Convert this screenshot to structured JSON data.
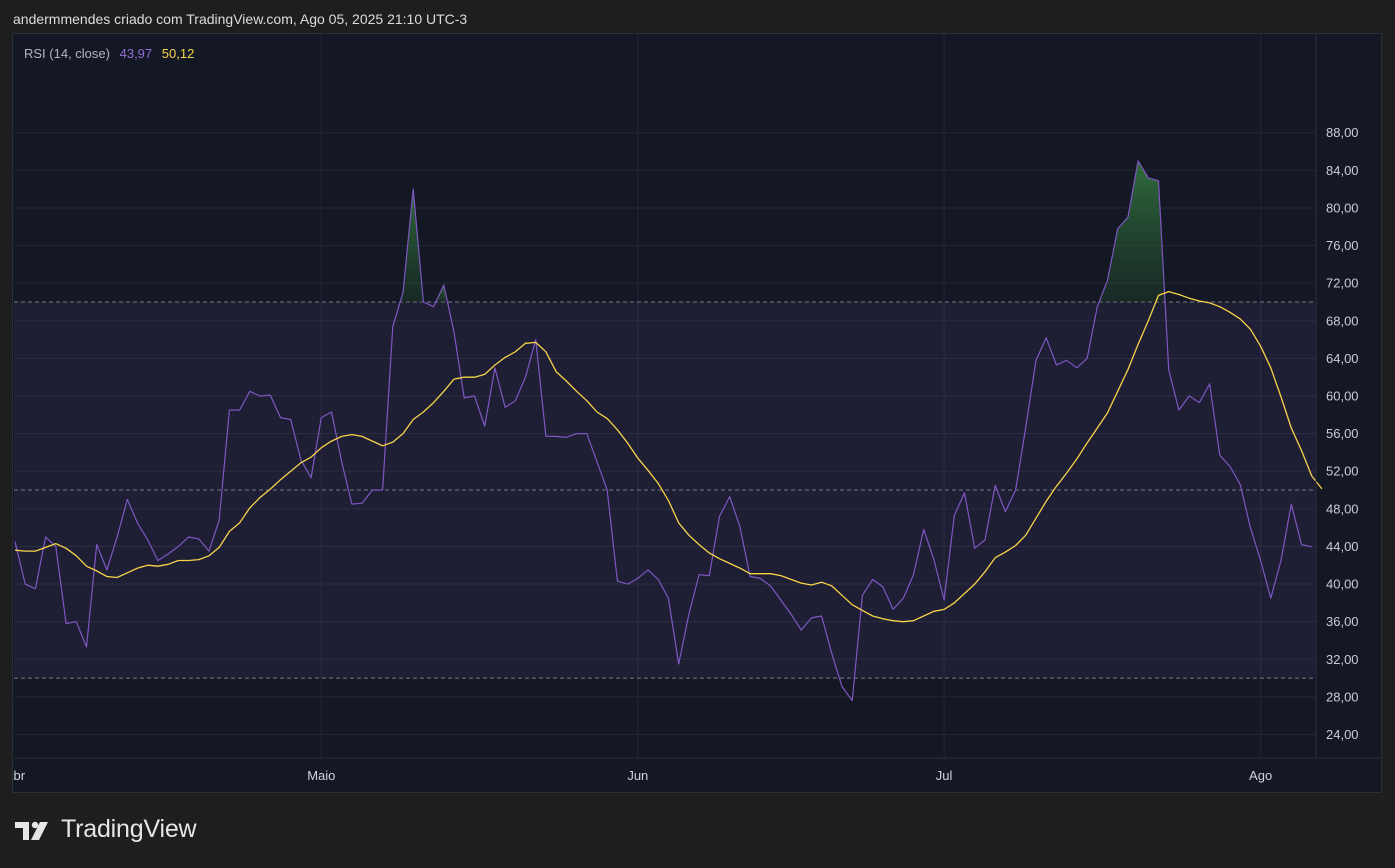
{
  "header": {
    "attribution": "andermmendes criado com TradingView.com, Ago 05, 2025 21:10 UTC-3"
  },
  "legend": {
    "name": "RSI (14, close)",
    "rsi_value": "43,97",
    "ma_value": "50,12"
  },
  "colors": {
    "rsi": "#7e57c2",
    "ma": "#f7d44a",
    "band": "#7e57c2",
    "overbought_fill": "#2e6b3a",
    "background": "#141824"
  },
  "logo": {
    "text": "TradingView",
    "icon": "tradingview-logo-icon"
  },
  "chart_data": {
    "type": "line",
    "title": "RSI (14, close)",
    "y_range": [
      21.5,
      98.5
    ],
    "y_ticks": [
      24,
      28,
      32,
      36,
      40,
      44,
      48,
      52,
      56,
      60,
      64,
      68,
      72,
      76,
      80,
      84,
      88
    ],
    "y_tick_labels": [
      "24,00",
      "28,00",
      "32,00",
      "36,00",
      "40,00",
      "44,00",
      "48,00",
      "52,00",
      "56,00",
      "60,00",
      "64,00",
      "68,00",
      "72,00",
      "76,00",
      "80,00",
      "84,00",
      "88,00"
    ],
    "x_ticks": [
      {
        "label": "Abr",
        "index": 0
      },
      {
        "label": "Maio",
        "index": 30
      },
      {
        "label": "Jun",
        "index": 61
      },
      {
        "label": "Jul",
        "index": 91
      },
      {
        "label": "Ago",
        "index": 122
      }
    ],
    "bands": {
      "upper": 70,
      "middle": 50,
      "lower": 30
    },
    "series": [
      {
        "name": "RSI",
        "values": [
          44.5,
          40.0,
          39.5,
          45.0,
          44.0,
          35.8,
          36.0,
          33.3,
          44.2,
          41.5,
          45.0,
          49.0,
          46.5,
          44.7,
          42.5,
          43.2,
          44.0,
          45.0,
          44.8,
          43.5,
          46.8,
          58.5,
          58.5,
          60.5,
          60.0,
          60.1,
          57.7,
          57.5,
          53.2,
          51.3,
          57.7,
          58.3,
          53.0,
          48.5,
          48.6,
          50.0,
          50.0,
          67.4,
          71.0,
          82.0,
          70.0,
          69.5,
          71.8,
          66.8,
          59.8,
          60.0,
          56.8,
          63.0,
          58.8,
          59.5,
          62.0,
          66.0,
          55.7,
          55.7,
          55.6,
          56.0,
          56.0,
          53.0,
          50.0,
          40.3,
          40.0,
          40.6,
          41.5,
          40.5,
          38.5,
          31.5,
          36.8,
          41.0,
          40.9,
          47.2,
          49.3,
          46.1,
          40.8,
          40.6,
          39.8,
          38.3,
          36.8,
          35.1,
          36.4,
          36.6,
          32.6,
          29.1,
          27.6,
          38.8,
          40.5,
          39.7,
          37.3,
          38.5,
          41.0,
          45.8,
          42.6,
          38.3,
          47.3,
          49.7,
          43.8,
          44.7,
          50.5,
          47.7,
          50.0,
          56.7,
          63.8,
          66.2,
          63.3,
          63.8,
          63.0,
          64.0,
          69.5,
          72.3,
          77.8,
          79.0,
          85.0,
          83.2,
          82.9,
          62.8,
          58.5,
          60.0,
          59.3,
          61.3,
          53.7,
          52.5,
          50.6,
          46.0,
          42.5,
          38.5,
          42.5,
          48.5,
          44.2,
          43.97
        ]
      },
      {
        "name": "RSI-based MA",
        "values": [
          43.6,
          43.5,
          43.5,
          43.9,
          44.3,
          43.8,
          43.0,
          41.9,
          41.4,
          40.8,
          40.7,
          41.2,
          41.7,
          42.0,
          41.9,
          42.1,
          42.5,
          42.5,
          42.6,
          43.0,
          43.9,
          45.6,
          46.5,
          48.1,
          49.2,
          50.1,
          51.1,
          52.0,
          52.9,
          53.5,
          54.5,
          55.2,
          55.7,
          55.9,
          55.7,
          55.2,
          54.7,
          55.1,
          56.0,
          57.5,
          58.3,
          59.3,
          60.5,
          61.8,
          62.0,
          62.0,
          62.3,
          63.3,
          64.1,
          64.7,
          65.6,
          65.7,
          64.7,
          62.6,
          61.6,
          60.5,
          59.5,
          58.3,
          57.6,
          56.4,
          55.0,
          53.4,
          52.1,
          50.7,
          48.9,
          46.5,
          45.2,
          44.2,
          43.3,
          42.7,
          42.2,
          41.7,
          41.1,
          41.1,
          41.1,
          40.9,
          40.5,
          40.1,
          39.9,
          40.2,
          39.8,
          38.8,
          37.8,
          37.2,
          36.6,
          36.3,
          36.1,
          36.0,
          36.1,
          36.6,
          37.1,
          37.3,
          38.0,
          39.0,
          40.0,
          41.3,
          42.8,
          43.4,
          44.1,
          45.2,
          47.0,
          48.8,
          50.4,
          51.8,
          53.3,
          55.0,
          56.6,
          58.2,
          60.5,
          62.8,
          65.5,
          68.0,
          70.7,
          71.1,
          70.8,
          70.4,
          70.1,
          69.9,
          69.5,
          68.9,
          68.2,
          67.1,
          65.3,
          63.0,
          59.9,
          56.6,
          54.2,
          51.5,
          50.12
        ]
      }
    ]
  }
}
